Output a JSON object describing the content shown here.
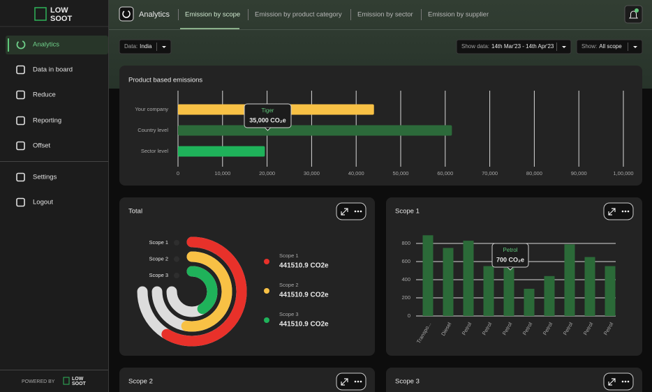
{
  "sidebar": {
    "logo": [
      "LOW",
      "SOOT"
    ],
    "menu": [
      "Analytics",
      "Data in board",
      "Reduce",
      "Reporting",
      "Offset"
    ],
    "menu_bottom": [
      "Settings",
      "Logout"
    ],
    "powered_by": "POWERED BY"
  },
  "topbar": {
    "title": "Analytics",
    "tabs": [
      "Emission by scope",
      "Emission by product category",
      "Emission by sector",
      "Emission by supplier"
    ]
  },
  "filters": [
    {
      "label": "Data:",
      "value": "India"
    },
    {
      "label": "Show data:",
      "value": "14th Mar'23 - 14th Apr'23"
    },
    {
      "label": "Show:",
      "value": "All scope"
    }
  ],
  "chart_data": [
    {
      "type": "hbar",
      "title": "Product based emissions",
      "categories": [
        "Your company",
        "Country level",
        "Sector level"
      ],
      "values": [
        44000,
        61500,
        19500
      ],
      "colors": [
        "#f8c145",
        "#2c6a3a",
        "#1fb25a"
      ],
      "xlim": [
        0,
        100000
      ],
      "xticks": [
        0,
        {
          "value": 10000,
          "label": "10,000"
        },
        {
          "value": 20000,
          "label": "20,000"
        },
        {
          "value": 30000,
          "label": "30,000"
        },
        {
          "value": 40000,
          "label": "40,000"
        },
        {
          "value": 50000,
          "label": "50,000"
        },
        {
          "value": 60000,
          "label": "60,000"
        },
        {
          "value": 70000,
          "label": "70,000"
        },
        {
          "value": 80000,
          "label": "80,000"
        },
        {
          "value": 90000,
          "label": "90,000"
        },
        {
          "value": 100000,
          "label": "1,00,000"
        }
      ],
      "grid": true,
      "tooltip": {
        "title": "Tiger",
        "text": "35,000 CO₂e"
      }
    },
    {
      "type": "radial",
      "title": "Total",
      "categories": [
        "Scope 1",
        "Scope 2",
        "Scope 3"
      ],
      "values": [
        441510.9,
        441510.9,
        441510.9
      ],
      "value_labels": [
        "441510.9 CO2e",
        "441510.9 CO2e",
        "441510.9 CO2e"
      ],
      "shares": [
        78,
        70,
        55
      ],
      "range": [
        0,
        100
      ],
      "colors": [
        "#e8312a",
        "#f8c145",
        "#1fb25a"
      ],
      "track_color": "#dcdcdc"
    },
    {
      "type": "bar",
      "title": "Scope 1",
      "categories": [
        "Transpo...",
        "Diesel",
        "Petrol",
        "Petrol",
        "Petrol",
        "Petrol",
        "Petrol",
        "Petrol",
        "Petrol",
        "Petrol"
      ],
      "values": [
        890,
        750,
        830,
        550,
        530,
        300,
        440,
        790,
        650,
        550
      ],
      "color": "#2b6a38",
      "ylim": [
        0,
        900
      ],
      "yticks": [
        0,
        200,
        400,
        600,
        800
      ],
      "grid": true,
      "tooltip": {
        "title": "Petrol",
        "text": "700 CO₂e"
      }
    }
  ],
  "cards": [
    "Scope 2",
    "Scope 3"
  ]
}
